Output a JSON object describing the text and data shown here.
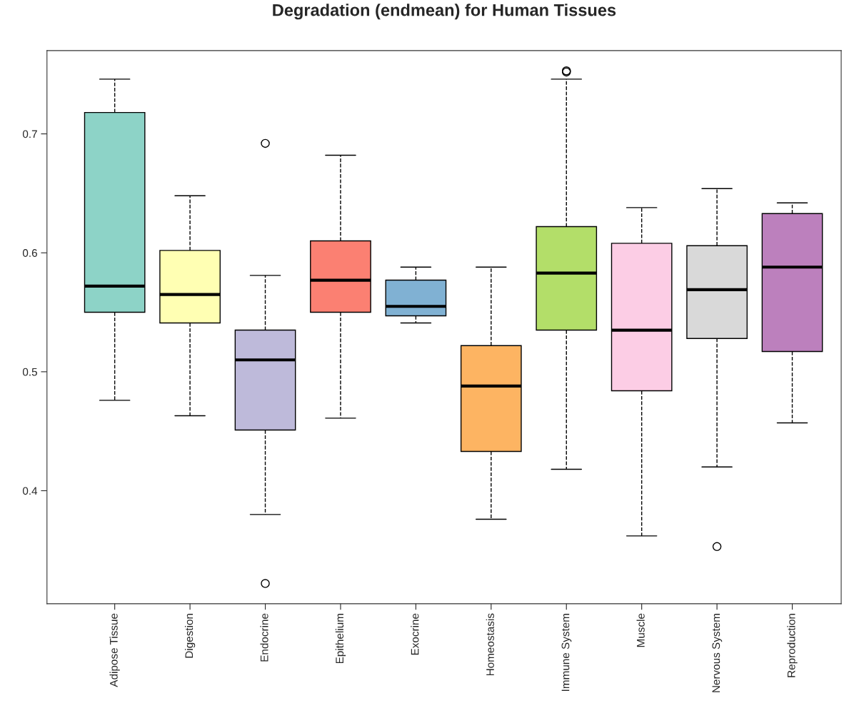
{
  "chart_data": {
    "type": "box",
    "title": "Degradation (endmean) for Human Tissues",
    "categories": [
      "Adipose Tissue",
      "Digestion",
      "Endocrine",
      "Epithelium",
      "Exocrine",
      "Homeostasis",
      "Immune System",
      "Muscle",
      "Nervous System",
      "Reproduction"
    ],
    "colors": [
      "#8dd3c7",
      "#ffffb3",
      "#bebada",
      "#fb8072",
      "#80b1d3",
      "#fdb462",
      "#b3de69",
      "#fccde5",
      "#d9d9d9",
      "#bc80bd"
    ],
    "boxes": [
      {
        "low": 0.476,
        "q1": 0.55,
        "median": 0.572,
        "q3": 0.718,
        "high": 0.746
      },
      {
        "low": 0.463,
        "q1": 0.541,
        "median": 0.565,
        "q3": 0.602,
        "high": 0.648
      },
      {
        "low": 0.38,
        "q1": 0.451,
        "median": 0.51,
        "q3": 0.535,
        "high": 0.581,
        "outliers": [
          0.692,
          0.322
        ]
      },
      {
        "low": 0.461,
        "q1": 0.55,
        "median": 0.577,
        "q3": 0.61,
        "high": 0.682
      },
      {
        "low": 0.541,
        "q1": 0.547,
        "median": 0.555,
        "q3": 0.577,
        "high": 0.588
      },
      {
        "low": 0.376,
        "q1": 0.433,
        "median": 0.488,
        "q3": 0.522,
        "high": 0.588
      },
      {
        "low": 0.418,
        "q1": 0.535,
        "median": 0.583,
        "q3": 0.622,
        "high": 0.746,
        "outliers": [
          0.753,
          0.752
        ]
      },
      {
        "low": 0.362,
        "q1": 0.484,
        "median": 0.535,
        "q3": 0.608,
        "high": 0.638
      },
      {
        "low": 0.42,
        "q1": 0.528,
        "median": 0.569,
        "q3": 0.606,
        "high": 0.654,
        "outliers": [
          0.353
        ]
      },
      {
        "low": 0.457,
        "q1": 0.517,
        "median": 0.588,
        "q3": 0.633,
        "high": 0.642
      }
    ],
    "ylim": [
      0.305,
      0.77
    ],
    "yticks": [
      0.4,
      0.5,
      0.6,
      0.7
    ],
    "grid": false,
    "legend": false
  }
}
